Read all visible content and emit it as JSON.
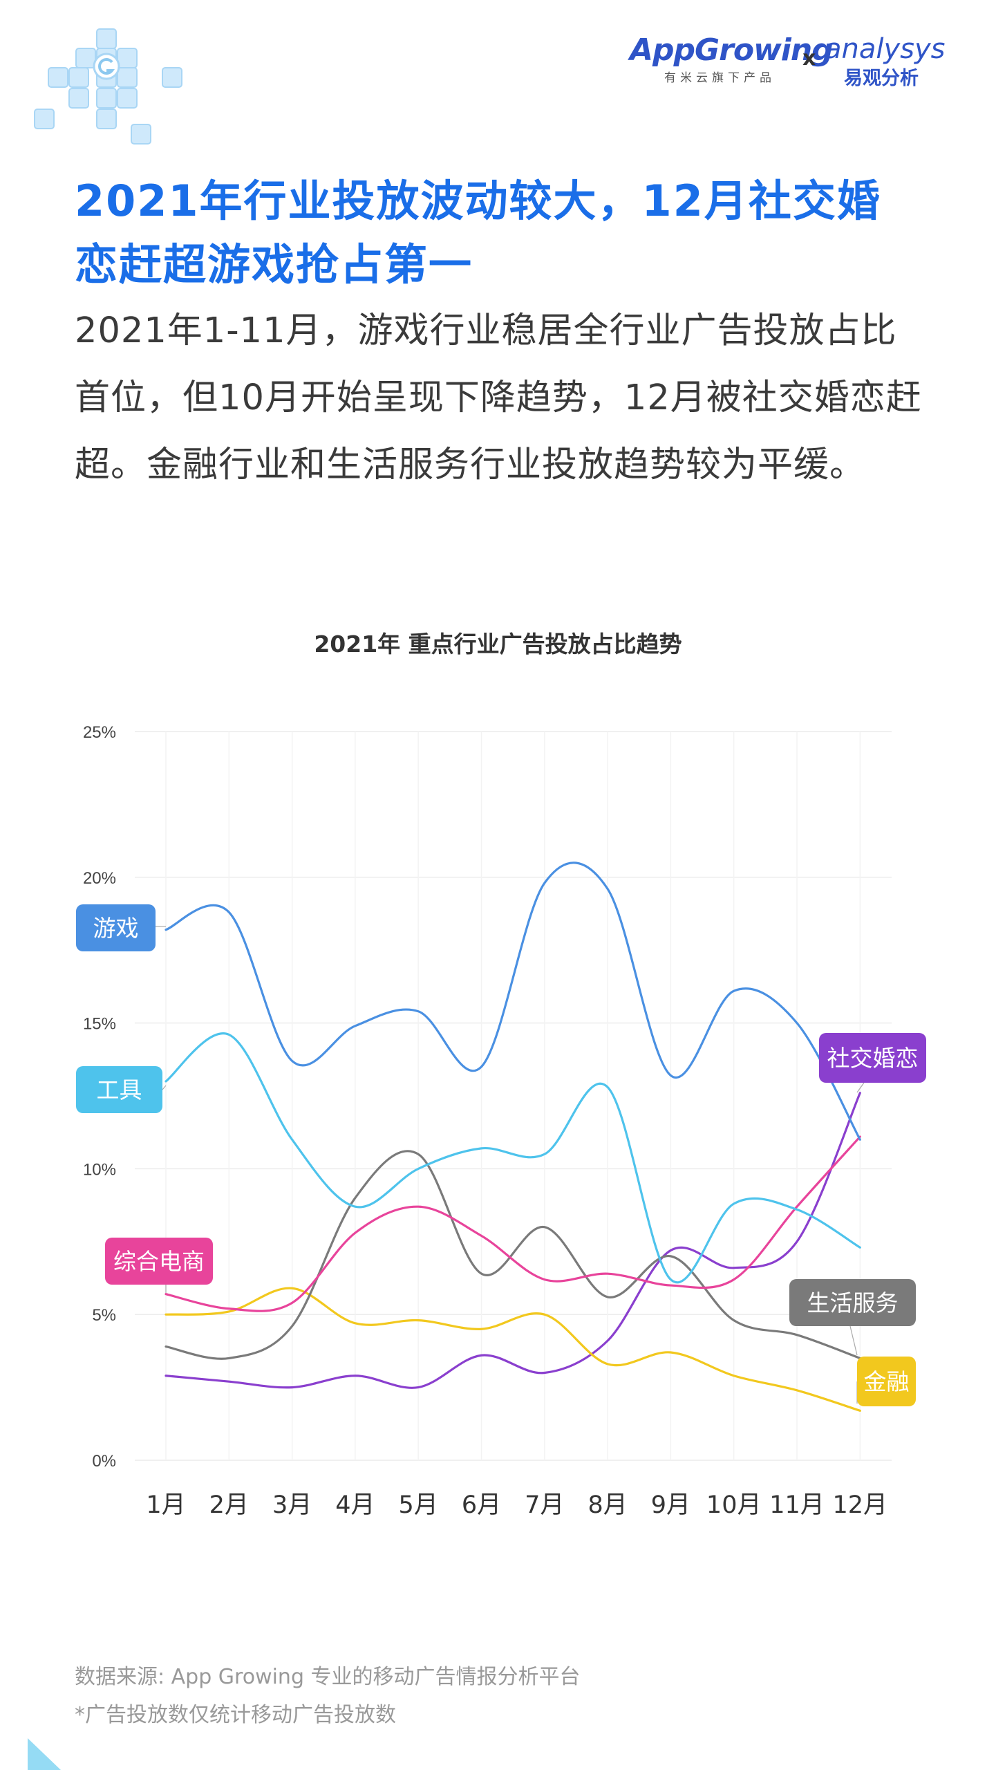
{
  "header": {
    "logo_appgrowing": "AppGrowing",
    "logo_appgrowing_sub": "有米云旗下产品",
    "logo_separator": "x",
    "logo_analysys": "analysys",
    "logo_analysys_sub": "易观分析"
  },
  "headline": "2021年行业投放波动较大，12月社交婚恋赶超游戏抢占第一",
  "subtitle": "2021年1-11月，游戏行业稳居全行业广告投放占比首位，但10月开始呈现下降趋势，12月被社交婚恋赶超。金融行业和生活服务行业投放趋势较为平缓。",
  "chart_data": {
    "type": "line",
    "title": "2021年 重点行业广告投放占比趋势",
    "xlabel": "",
    "ylabel": "",
    "categories": [
      "1月",
      "2月",
      "3月",
      "4月",
      "5月",
      "6月",
      "7月",
      "8月",
      "9月",
      "10月",
      "11月",
      "12月"
    ],
    "yticks": [
      "0%",
      "5%",
      "10%",
      "15%",
      "20%",
      "25%"
    ],
    "ylim": [
      0,
      25
    ],
    "grid": true,
    "series": [
      {
        "name": "游戏",
        "color": "#4a90e2",
        "values": [
          18.2,
          18.8,
          13.7,
          14.9,
          15.4,
          13.5,
          19.8,
          19.6,
          13.2,
          16.1,
          15.0,
          11.0
        ]
      },
      {
        "name": "工具",
        "color": "#4ec3ec",
        "values": [
          13.0,
          14.6,
          11.0,
          8.7,
          10.0,
          10.7,
          10.5,
          12.8,
          6.2,
          8.8,
          8.6,
          7.3
        ]
      },
      {
        "name": "综合电商",
        "color": "#e8449b",
        "values": [
          5.7,
          5.2,
          5.4,
          7.8,
          8.7,
          7.7,
          6.2,
          6.4,
          6.0,
          6.2,
          8.7,
          11.1
        ]
      },
      {
        "name": "生活服务",
        "color": "#7a7a7a",
        "values": [
          3.9,
          3.5,
          4.6,
          9.0,
          10.5,
          6.4,
          8.0,
          5.6,
          7.0,
          4.8,
          4.3,
          3.5
        ]
      },
      {
        "name": "金融",
        "color": "#f2c81e",
        "values": [
          5.0,
          5.1,
          5.9,
          4.7,
          4.8,
          4.5,
          5.0,
          3.3,
          3.7,
          2.9,
          2.4,
          1.7
        ]
      },
      {
        "name": "社交婚恋",
        "color": "#8a3fce",
        "values": [
          2.9,
          2.7,
          2.5,
          2.9,
          2.5,
          3.6,
          3.0,
          4.1,
          7.2,
          6.6,
          7.5,
          12.6
        ]
      }
    ]
  },
  "footnotes": {
    "source": "数据来源: App Growing 专业的移动广告情报分析平台",
    "note": "*广告投放数仅统计移动广告投放数"
  }
}
